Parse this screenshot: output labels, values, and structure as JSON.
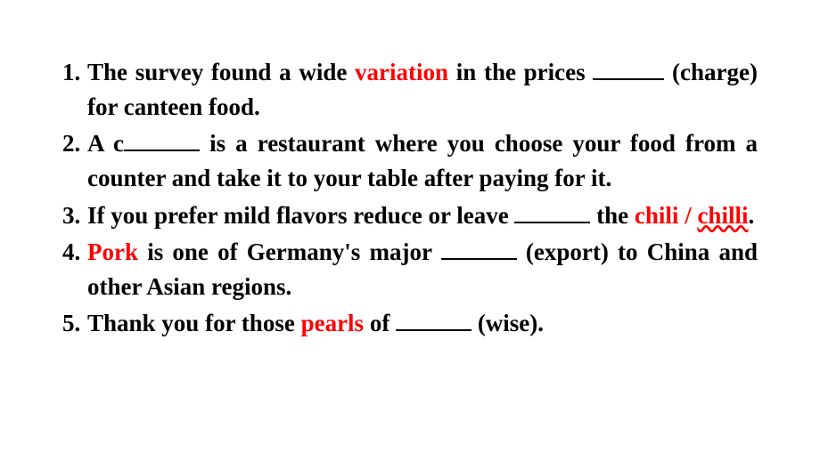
{
  "questions": {
    "q1": {
      "part1": "The survey found a wide ",
      "highlight": "variation",
      "part2": " in the prices ",
      "part3": " (charge) for canteen food."
    },
    "q2": {
      "part1": "A c",
      "part2": " is a restaurant where you choose your food from a counter and take it to your table after paying for it."
    },
    "q3": {
      "part1": "If you prefer mild flavors reduce or leave ",
      "part2": " the ",
      "highlight1": "chili",
      "slash": " / ",
      "highlight2": "chilli",
      "period": "."
    },
    "q4": {
      "highlight": "Pork",
      "part1": " is one of Germany's major ",
      "part2": " (export) to China and other Asian regions."
    },
    "q5": {
      "part1": "Thank you for those ",
      "highlight": "pearls",
      "part2": " of ",
      "part3": " (wise)."
    }
  }
}
